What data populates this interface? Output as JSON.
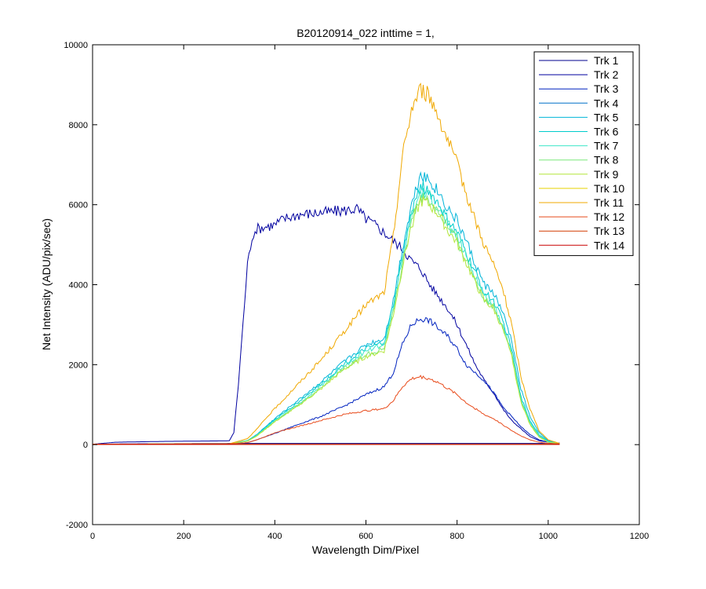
{
  "chart_data": {
    "type": "line",
    "title": "B20120914_022 inttime = 1,",
    "xlabel": "Wavelength Dim/Pixel",
    "ylabel": "Net Intensity (ADU/pix/sec)",
    "xlim": [
      0,
      1200
    ],
    "ylim": [
      -2000,
      10000
    ],
    "xticks": [
      0,
      200,
      400,
      600,
      800,
      1000,
      1200
    ],
    "yticks": [
      -2000,
      0,
      2000,
      4000,
      6000,
      8000,
      10000
    ],
    "grid": false,
    "legend_position": "top-right",
    "series": [
      {
        "name": "Trk 1",
        "color": "#00008f",
        "points": [
          [
            0,
            10
          ],
          [
            100,
            20
          ],
          [
            300,
            30
          ],
          [
            1025,
            30
          ]
        ]
      },
      {
        "name": "Trk 2",
        "color": "#00009f",
        "points": [
          [
            0,
            10
          ],
          [
            50,
            60
          ],
          [
            100,
            70
          ],
          [
            150,
            80
          ],
          [
            200,
            85
          ],
          [
            250,
            90
          ],
          [
            300,
            95
          ],
          [
            310,
            300
          ],
          [
            320,
            1500
          ],
          [
            330,
            3000
          ],
          [
            340,
            4500
          ],
          [
            350,
            5200
          ],
          [
            360,
            5400
          ],
          [
            380,
            5450
          ],
          [
            400,
            5500
          ],
          [
            420,
            5650
          ],
          [
            450,
            5750
          ],
          [
            500,
            5800
          ],
          [
            550,
            5850
          ],
          [
            580,
            5900
          ],
          [
            600,
            5650
          ],
          [
            620,
            5500
          ],
          [
            640,
            5300
          ],
          [
            660,
            5100
          ],
          [
            680,
            4900
          ],
          [
            700,
            4600
          ],
          [
            720,
            4400
          ],
          [
            740,
            4000
          ],
          [
            760,
            3700
          ],
          [
            780,
            3400
          ],
          [
            800,
            3000
          ],
          [
            820,
            2500
          ],
          [
            840,
            2000
          ],
          [
            860,
            1600
          ],
          [
            880,
            1300
          ],
          [
            900,
            900
          ],
          [
            920,
            600
          ],
          [
            940,
            400
          ],
          [
            960,
            200
          ],
          [
            980,
            100
          ],
          [
            1000,
            60
          ],
          [
            1025,
            40
          ]
        ]
      },
      {
        "name": "Trk 3",
        "color": "#0022bf",
        "points": [
          [
            0,
            10
          ],
          [
            300,
            20
          ],
          [
            340,
            50
          ],
          [
            360,
            120
          ],
          [
            380,
            200
          ],
          [
            400,
            280
          ],
          [
            450,
            500
          ],
          [
            500,
            700
          ],
          [
            550,
            950
          ],
          [
            600,
            1250
          ],
          [
            640,
            1450
          ],
          [
            660,
            1800
          ],
          [
            680,
            2500
          ],
          [
            700,
            3000
          ],
          [
            720,
            3150
          ],
          [
            740,
            3100
          ],
          [
            760,
            2900
          ],
          [
            780,
            2700
          ],
          [
            800,
            2400
          ],
          [
            820,
            2000
          ],
          [
            840,
            1800
          ],
          [
            860,
            1600
          ],
          [
            880,
            1300
          ],
          [
            900,
            950
          ],
          [
            920,
            700
          ],
          [
            940,
            450
          ],
          [
            960,
            250
          ],
          [
            980,
            120
          ],
          [
            1000,
            60
          ],
          [
            1025,
            30
          ]
        ]
      },
      {
        "name": "Trk 4",
        "color": "#0070c8",
        "points": [
          [
            0,
            10
          ],
          [
            1025,
            10
          ]
        ]
      },
      {
        "name": "Trk 5",
        "color": "#00b4d8",
        "points": [
          [
            0,
            10
          ],
          [
            300,
            20
          ],
          [
            340,
            100
          ],
          [
            360,
            250
          ],
          [
            380,
            450
          ],
          [
            400,
            650
          ],
          [
            450,
            1100
          ],
          [
            500,
            1550
          ],
          [
            550,
            2050
          ],
          [
            600,
            2500
          ],
          [
            640,
            2650
          ],
          [
            660,
            3600
          ],
          [
            680,
            4900
          ],
          [
            700,
            6000
          ],
          [
            720,
            6800
          ],
          [
            740,
            6600
          ],
          [
            760,
            6300
          ],
          [
            780,
            5900
          ],
          [
            800,
            5600
          ],
          [
            820,
            5100
          ],
          [
            840,
            4500
          ],
          [
            860,
            4000
          ],
          [
            880,
            3800
          ],
          [
            900,
            3300
          ],
          [
            920,
            2600
          ],
          [
            940,
            1400
          ],
          [
            960,
            700
          ],
          [
            980,
            300
          ],
          [
            1000,
            100
          ],
          [
            1025,
            30
          ]
        ]
      },
      {
        "name": "Trk 6",
        "color": "#00cccc",
        "points": [
          [
            0,
            10
          ],
          [
            300,
            20
          ],
          [
            340,
            100
          ],
          [
            360,
            240
          ],
          [
            380,
            430
          ],
          [
            400,
            620
          ],
          [
            450,
            1050
          ],
          [
            500,
            1500
          ],
          [
            550,
            2000
          ],
          [
            600,
            2400
          ],
          [
            640,
            2550
          ],
          [
            660,
            3500
          ],
          [
            680,
            4700
          ],
          [
            700,
            5800
          ],
          [
            720,
            6500
          ],
          [
            740,
            6300
          ],
          [
            760,
            6000
          ],
          [
            780,
            5600
          ],
          [
            800,
            5300
          ],
          [
            820,
            4800
          ],
          [
            840,
            4300
          ],
          [
            860,
            3800
          ],
          [
            880,
            3600
          ],
          [
            900,
            3100
          ],
          [
            920,
            2400
          ],
          [
            940,
            1200
          ],
          [
            960,
            600
          ],
          [
            980,
            250
          ],
          [
            1000,
            80
          ],
          [
            1025,
            30
          ]
        ]
      },
      {
        "name": "Trk 7",
        "color": "#3ee6c8",
        "points": [
          [
            0,
            10
          ],
          [
            300,
            20
          ],
          [
            340,
            90
          ],
          [
            360,
            230
          ],
          [
            380,
            420
          ],
          [
            400,
            600
          ],
          [
            450,
            1000
          ],
          [
            500,
            1450
          ],
          [
            550,
            1950
          ],
          [
            600,
            2350
          ],
          [
            640,
            2500
          ],
          [
            660,
            3400
          ],
          [
            680,
            4600
          ],
          [
            700,
            5700
          ],
          [
            720,
            6300
          ],
          [
            740,
            6200
          ],
          [
            760,
            5900
          ],
          [
            780,
            5500
          ],
          [
            800,
            5200
          ],
          [
            820,
            4700
          ],
          [
            840,
            4200
          ],
          [
            860,
            3700
          ],
          [
            880,
            3500
          ],
          [
            900,
            3000
          ],
          [
            920,
            2300
          ],
          [
            940,
            1150
          ],
          [
            960,
            550
          ],
          [
            980,
            220
          ],
          [
            1000,
            70
          ],
          [
            1025,
            30
          ]
        ]
      },
      {
        "name": "Trk 8",
        "color": "#7ce87c",
        "points": [
          [
            0,
            10
          ],
          [
            300,
            20
          ],
          [
            340,
            90
          ],
          [
            360,
            220
          ],
          [
            380,
            400
          ],
          [
            400,
            580
          ],
          [
            450,
            980
          ],
          [
            500,
            1400
          ],
          [
            550,
            1900
          ],
          [
            600,
            2250
          ],
          [
            640,
            2400
          ],
          [
            660,
            3300
          ],
          [
            680,
            4500
          ],
          [
            700,
            5600
          ],
          [
            720,
            6200
          ],
          [
            740,
            6050
          ],
          [
            760,
            5800
          ],
          [
            780,
            5400
          ],
          [
            800,
            5100
          ],
          [
            820,
            4600
          ],
          [
            840,
            4100
          ],
          [
            860,
            3650
          ],
          [
            880,
            3450
          ],
          [
            900,
            2950
          ],
          [
            920,
            2250
          ],
          [
            940,
            1100
          ],
          [
            960,
            520
          ],
          [
            980,
            200
          ],
          [
            1000,
            60
          ],
          [
            1025,
            30
          ]
        ]
      },
      {
        "name": "Trk 9",
        "color": "#b4e63c",
        "points": [
          [
            0,
            10
          ],
          [
            300,
            20
          ],
          [
            340,
            85
          ],
          [
            360,
            210
          ],
          [
            380,
            390
          ],
          [
            400,
            570
          ],
          [
            450,
            960
          ],
          [
            500,
            1380
          ],
          [
            550,
            1870
          ],
          [
            600,
            2200
          ],
          [
            640,
            2350
          ],
          [
            660,
            3250
          ],
          [
            680,
            4450
          ],
          [
            700,
            5500
          ],
          [
            720,
            6100
          ],
          [
            740,
            6000
          ],
          [
            760,
            5750
          ],
          [
            780,
            5350
          ],
          [
            800,
            5050
          ],
          [
            820,
            4550
          ],
          [
            840,
            4050
          ],
          [
            860,
            3600
          ],
          [
            880,
            3400
          ],
          [
            900,
            2900
          ],
          [
            920,
            2200
          ],
          [
            940,
            1080
          ],
          [
            960,
            500
          ],
          [
            980,
            190
          ],
          [
            1000,
            60
          ],
          [
            1025,
            30
          ]
        ]
      },
      {
        "name": "Trk 10",
        "color": "#e6d200",
        "points": [
          [
            0,
            10
          ],
          [
            1025,
            10
          ]
        ]
      },
      {
        "name": "Trk 11",
        "color": "#f0a800",
        "points": [
          [
            0,
            10
          ],
          [
            300,
            20
          ],
          [
            340,
            150
          ],
          [
            360,
            380
          ],
          [
            380,
            650
          ],
          [
            400,
            900
          ],
          [
            450,
            1500
          ],
          [
            500,
            2100
          ],
          [
            550,
            2800
          ],
          [
            600,
            3500
          ],
          [
            640,
            3800
          ],
          [
            660,
            5200
          ],
          [
            680,
            7200
          ],
          [
            700,
            8400
          ],
          [
            720,
            8900
          ],
          [
            740,
            8700
          ],
          [
            760,
            8200
          ],
          [
            780,
            7600
          ],
          [
            800,
            7000
          ],
          [
            820,
            6300
          ],
          [
            840,
            5600
          ],
          [
            860,
            5000
          ],
          [
            880,
            4500
          ],
          [
            900,
            3900
          ],
          [
            920,
            3000
          ],
          [
            940,
            1700
          ],
          [
            960,
            900
          ],
          [
            980,
            350
          ],
          [
            1000,
            120
          ],
          [
            1025,
            30
          ]
        ]
      },
      {
        "name": "Trk 12",
        "color": "#e84a1a",
        "points": [
          [
            0,
            10
          ],
          [
            300,
            20
          ],
          [
            340,
            50
          ],
          [
            360,
            120
          ],
          [
            380,
            200
          ],
          [
            400,
            300
          ],
          [
            450,
            450
          ],
          [
            500,
            600
          ],
          [
            550,
            750
          ],
          [
            600,
            850
          ],
          [
            640,
            900
          ],
          [
            660,
            1100
          ],
          [
            680,
            1450
          ],
          [
            700,
            1650
          ],
          [
            720,
            1700
          ],
          [
            740,
            1650
          ],
          [
            760,
            1550
          ],
          [
            780,
            1400
          ],
          [
            800,
            1250
          ],
          [
            820,
            1050
          ],
          [
            840,
            900
          ],
          [
            860,
            750
          ],
          [
            880,
            650
          ],
          [
            900,
            500
          ],
          [
            920,
            350
          ],
          [
            940,
            220
          ],
          [
            960,
            120
          ],
          [
            980,
            60
          ],
          [
            1000,
            30
          ],
          [
            1025,
            20
          ]
        ]
      },
      {
        "name": "Trk 13",
        "color": "#d23c00",
        "points": [
          [
            0,
            10
          ],
          [
            1025,
            10
          ]
        ]
      },
      {
        "name": "Trk 14",
        "color": "#c80000",
        "points": [
          [
            0,
            5
          ],
          [
            1025,
            5
          ]
        ]
      }
    ]
  }
}
